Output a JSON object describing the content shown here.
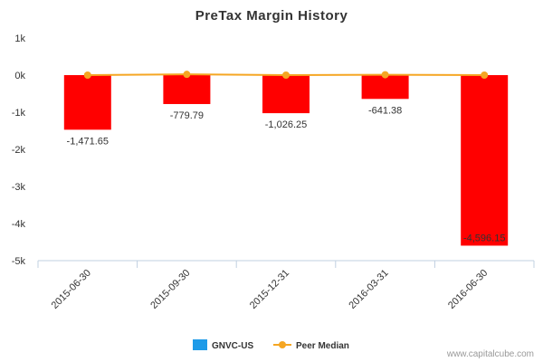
{
  "chart_data": {
    "type": "bar",
    "title": "PreTax Margin History",
    "categories": [
      "2015-06-30",
      "2015-09-30",
      "2015-12-31",
      "2016-03-31",
      "2016-06-30"
    ],
    "series": [
      {
        "name": "GNVC-US",
        "kind": "bar",
        "values": [
          -1471.65,
          -779.79,
          -1026.25,
          -641.38,
          -4596.15
        ],
        "labels": [
          "-1,471.65",
          "-779.79",
          "-1,026.25",
          "-641.38",
          "-4,596.15"
        ],
        "color": "#ff0000",
        "legend_color": "#1e9be8"
      },
      {
        "name": "Peer Median",
        "kind": "line",
        "values": [
          0,
          20,
          0,
          10,
          0
        ],
        "color": "#f5a623"
      }
    ],
    "yticks": [
      {
        "value": 1000,
        "label": "1k"
      },
      {
        "value": 0,
        "label": "0k"
      },
      {
        "value": -1000,
        "label": "-1k"
      },
      {
        "value": -2000,
        "label": "-2k"
      },
      {
        "value": -3000,
        "label": "-3k"
      },
      {
        "value": -4000,
        "label": "-4k"
      },
      {
        "value": -5000,
        "label": "-5k"
      }
    ],
    "ylim": [
      -5000,
      1000
    ],
    "grid": false,
    "legend_position": "bottom-center"
  },
  "watermark": "www.capitalcube.com"
}
